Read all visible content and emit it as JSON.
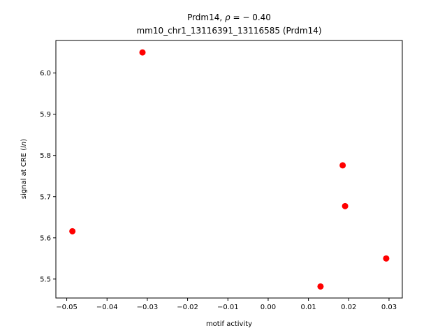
{
  "chart_data": {
    "type": "scatter",
    "title_line1_prefix": "Prdm14, ",
    "title_rho": "ρ",
    "title_value": " = − 0.40",
    "title_line2": "mm10_chr1_13116391_13116585 (Prdm14)",
    "xlabel": "motif activity",
    "ylabel_prefix": "signal at CRE (",
    "ylabel_italic": "ln",
    "ylabel_suffix": ")",
    "xlim": [
      -0.0527,
      0.0333
    ],
    "ylim": [
      5.454,
      6.079
    ],
    "xticks": [
      -0.05,
      -0.04,
      -0.03,
      -0.02,
      -0.01,
      0.0,
      0.01,
      0.02,
      0.03
    ],
    "xtick_labels": [
      "−0.05",
      "−0.04",
      "−0.03",
      "−0.02",
      "−0.01",
      "0.00",
      "0.01",
      "0.02",
      "0.03"
    ],
    "yticks": [
      5.5,
      5.6,
      5.7,
      5.8,
      5.9,
      6.0
    ],
    "ytick_labels": [
      "5.5",
      "5.6",
      "5.7",
      "5.8",
      "5.9",
      "6.0"
    ],
    "grid": false,
    "legend": "none",
    "point_color": "#ff0000",
    "points": [
      {
        "x": -0.0486,
        "y": 5.616
      },
      {
        "x": -0.0312,
        "y": 6.05
      },
      {
        "x": 0.013,
        "y": 5.482
      },
      {
        "x": 0.0185,
        "y": 5.776
      },
      {
        "x": 0.0191,
        "y": 5.677
      },
      {
        "x": 0.0293,
        "y": 5.55
      }
    ]
  }
}
